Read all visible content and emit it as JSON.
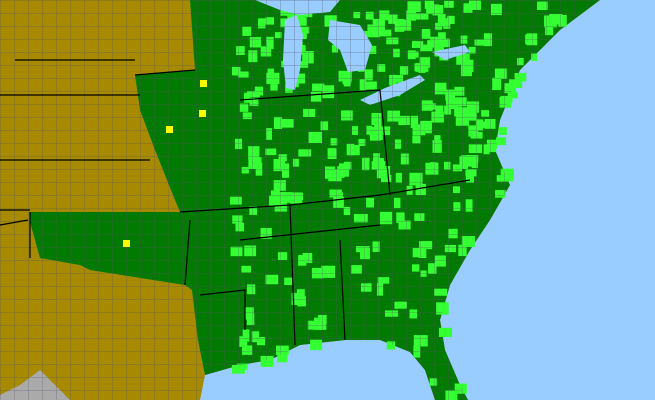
{
  "map": {
    "colors": {
      "water": "#99ccff",
      "absent_state": "#a88a00",
      "present_state": "#007a00",
      "present_county": "#33ff33",
      "reported_county": "#ffff00",
      "foreign": "#aaaaaa",
      "county_lines": "#555566",
      "state_lines": "#000000"
    },
    "icons": [
      "distribution-map"
    ]
  }
}
